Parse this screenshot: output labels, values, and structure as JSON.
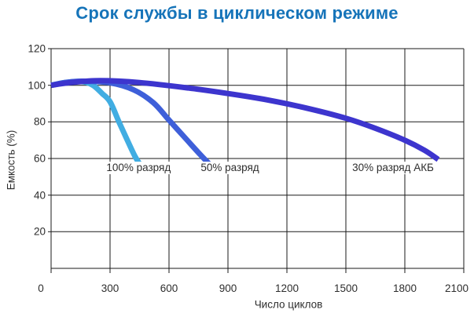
{
  "chart_data": {
    "type": "area",
    "title": "Срок службы в циклическом режиме",
    "xlabel": "Число циклов",
    "ylabel": "Емкость (%)",
    "xlim": [
      0,
      2100
    ],
    "ylim": [
      0,
      120
    ],
    "x_ticks": [
      0,
      300,
      600,
      900,
      1200,
      1500,
      1800,
      2100
    ],
    "y_ticks": [
      20,
      40,
      60,
      80,
      100,
      120
    ],
    "grid": true,
    "legend_position": "inline-labels",
    "series": [
      {
        "name": "100% разряд",
        "color": "#41ADE2",
        "label_at": {
          "x": 445,
          "y": 55
        },
        "points": [
          [
            0,
            100
          ],
          [
            60,
            101.3
          ],
          [
            120,
            102
          ],
          [
            170,
            101.8
          ],
          [
            215,
            99.8
          ],
          [
            260,
            95.5
          ],
          [
            300,
            91
          ],
          [
            345,
            80
          ],
          [
            390,
            69.5
          ],
          [
            425,
            61.5
          ],
          [
            448,
            57.5
          ]
        ]
      },
      {
        "name": "50% разряд",
        "color": "#3E5FD9",
        "label_at": {
          "x": 910,
          "y": 55
        },
        "points": [
          [
            0,
            100
          ],
          [
            80,
            101.6
          ],
          [
            160,
            102.2
          ],
          [
            300,
            101.3
          ],
          [
            420,
            97.5
          ],
          [
            520,
            90.5
          ],
          [
            600,
            81
          ],
          [
            680,
            71.5
          ],
          [
            760,
            62
          ],
          [
            810,
            56.5
          ]
        ]
      },
      {
        "name": "30% разряд АКБ",
        "color": "#3D35CE",
        "label_at": {
          "x": 1740,
          "y": 55
        },
        "points": [
          [
            0,
            100
          ],
          [
            100,
            101.5
          ],
          [
            250,
            102.5
          ],
          [
            450,
            101.5
          ],
          [
            700,
            98.5
          ],
          [
            900,
            95.5
          ],
          [
            1100,
            92
          ],
          [
            1300,
            87.5
          ],
          [
            1500,
            82
          ],
          [
            1650,
            76.5
          ],
          [
            1800,
            70
          ],
          [
            1900,
            64.5
          ],
          [
            1970,
            59.5
          ]
        ]
      }
    ]
  },
  "colors": {
    "title": "#1674B9",
    "axis_text": "#2e2e2e",
    "grid": "#1a1a1a",
    "background": "#ffffff"
  }
}
